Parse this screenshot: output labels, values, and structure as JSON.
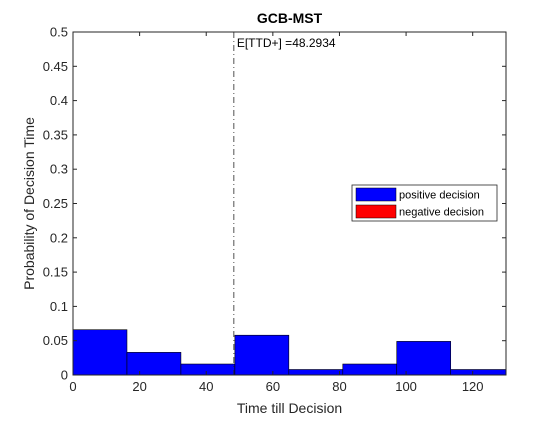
{
  "chart_data": {
    "type": "bar",
    "title": "GCB-MST",
    "xlabel": "Time till Decision",
    "ylabel": "Probability of Decision Time",
    "xlim": [
      0,
      130
    ],
    "ylim": [
      0,
      0.5
    ],
    "xticks": [
      "0",
      "20",
      "40",
      "60",
      "80",
      "100",
      "120"
    ],
    "xtick_values": [
      0,
      20,
      40,
      60,
      80,
      100,
      120
    ],
    "yticks": [
      "0",
      "0.05",
      "0.1",
      "0.15",
      "0.2",
      "0.25",
      "0.3",
      "0.35",
      "0.4",
      "0.45",
      "0.5"
    ],
    "ytick_values": [
      0,
      0.05,
      0.1,
      0.15,
      0.2,
      0.25,
      0.3,
      0.35,
      0.4,
      0.45,
      0.5
    ],
    "bin_edges": [
      0,
      16.2,
      32.4,
      48.6,
      64.8,
      81,
      97.2,
      113.4,
      130
    ],
    "series": [
      {
        "name": "positive decision",
        "color": "#0000ff",
        "values": [
          0.066,
          0.033,
          0.016,
          0.058,
          0.008,
          0.016,
          0.049,
          0.008
        ]
      },
      {
        "name": "negative decision",
        "color": "#ff0000",
        "values": [
          0,
          0,
          0,
          0,
          0,
          0,
          0,
          0
        ]
      }
    ],
    "mean_line": {
      "x": 48.2934,
      "label": "E[TTD+] =48.2934",
      "style": "dash-dot"
    },
    "legend_position": "right",
    "grid": false
  }
}
